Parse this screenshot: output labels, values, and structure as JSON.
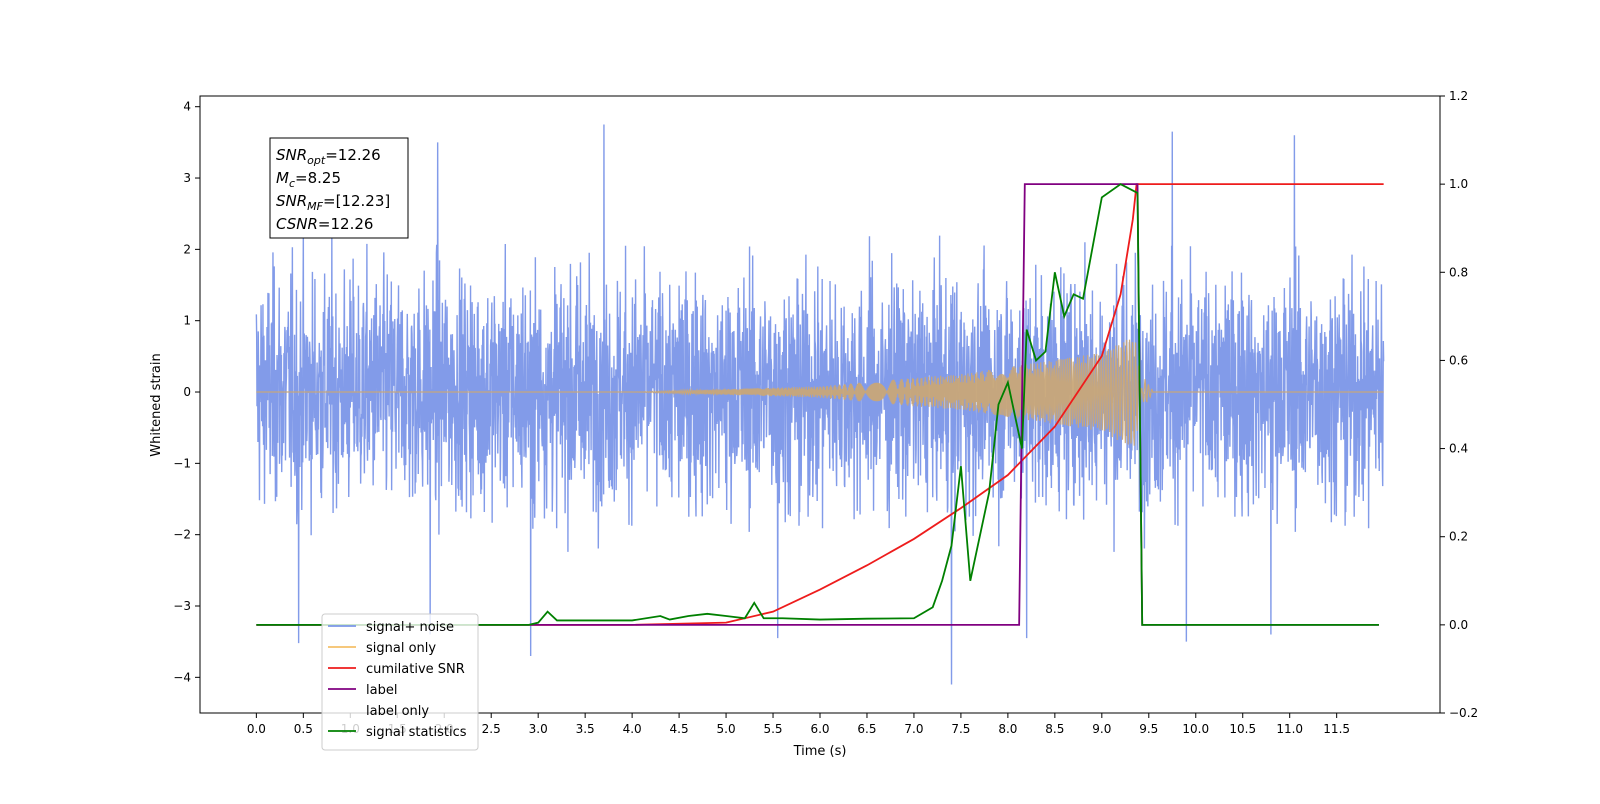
{
  "chart_data": {
    "type": "line",
    "xlabel": "Time (s)",
    "ylabel": "Whitened strain",
    "ylabel_right": "",
    "xlim": [
      -0.6,
      12.6
    ],
    "ylim_left": [
      -4.5,
      4.15
    ],
    "ylim_right": [
      -0.2,
      1.2
    ],
    "x_ticks": [
      "0.0",
      "0.5",
      "1.0",
      "1.5",
      "2.0",
      "2.5",
      "3.0",
      "3.5",
      "4.0",
      "4.5",
      "5.0",
      "5.5",
      "6.0",
      "6.5",
      "7.0",
      "7.5",
      "8.0",
      "8.5",
      "9.0",
      "9.5",
      "10.0",
      "10.5",
      "11.0",
      "11.5"
    ],
    "y_ticks_left": [
      "4",
      "3",
      "2",
      "1",
      "0",
      "−1",
      "−2",
      "−3",
      "−4"
    ],
    "y_ticks_right": [
      "1.2",
      "1.0",
      "0.8",
      "0.6",
      "0.4",
      "0.2",
      "0.0",
      "−0.2"
    ],
    "grid": false,
    "legend_position": "lower-left",
    "annotation": [
      {
        "base": "SNR",
        "sub": "opt",
        "rest": "=12.26"
      },
      {
        "base": "M",
        "sub": "c",
        "rest": "=8.25"
      },
      {
        "base": "SNR",
        "sub": "MF",
        "rest": "=[12.23]"
      },
      {
        "base": "CSNR",
        "sub": "",
        "rest": "=12.26"
      }
    ],
    "series": [
      {
        "name": "signal+ noise",
        "axis": "left",
        "color": "#7b96e8",
        "kind": "noise",
        "t_start": 0.0,
        "t_end": 12.0,
        "typical_range": [
          -2.3,
          2.7
        ],
        "extremes": [
          [
            0.45,
            -3.52
          ],
          [
            1.85,
            -3.4
          ],
          [
            1.93,
            3.5
          ],
          [
            2.92,
            -3.7
          ],
          [
            3.7,
            3.75
          ],
          [
            5.55,
            -3.45
          ],
          [
            7.4,
            -4.1
          ],
          [
            8.2,
            -3.45
          ],
          [
            9.75,
            3.65
          ],
          [
            9.9,
            -3.5
          ],
          [
            10.8,
            -3.4
          ],
          [
            11.05,
            3.6
          ]
        ]
      },
      {
        "name": "signal only",
        "axis": "left",
        "color": "#c8a678",
        "kind": "chirp",
        "points": [
          [
            0.0,
            0.0
          ],
          [
            4.0,
            0.0
          ],
          [
            5.0,
            0.04
          ],
          [
            6.0,
            0.08
          ],
          [
            7.0,
            0.2
          ],
          [
            7.5,
            0.25
          ],
          [
            8.0,
            0.35
          ],
          [
            8.5,
            0.45
          ],
          [
            9.0,
            0.55
          ],
          [
            9.2,
            0.7
          ],
          [
            9.35,
            0.8
          ],
          [
            9.45,
            -0.2
          ],
          [
            9.55,
            0.0
          ],
          [
            12.0,
            0.0
          ]
        ]
      },
      {
        "name": "cumilative SNR",
        "axis": "right",
        "color": "#ee1c1c",
        "kind": "line",
        "points": [
          [
            0.0,
            0.0
          ],
          [
            4.0,
            0.0
          ],
          [
            5.0,
            0.005
          ],
          [
            5.5,
            0.03
          ],
          [
            6.0,
            0.08
          ],
          [
            6.5,
            0.135
          ],
          [
            7.0,
            0.195
          ],
          [
            7.5,
            0.265
          ],
          [
            8.0,
            0.34
          ],
          [
            8.5,
            0.45
          ],
          [
            9.0,
            0.61
          ],
          [
            9.2,
            0.75
          ],
          [
            9.33,
            0.92
          ],
          [
            9.37,
            1.0
          ],
          [
            12.0,
            1.0
          ]
        ]
      },
      {
        "name": "label",
        "axis": "right",
        "color": "#800080",
        "kind": "line",
        "points": [
          [
            0.0,
            0.0
          ],
          [
            8.12,
            0.0
          ],
          [
            8.18,
            1.0
          ],
          [
            9.38,
            1.0
          ],
          [
            9.43,
            0.0
          ],
          [
            11.95,
            0.0
          ]
        ]
      },
      {
        "name": "label only",
        "axis": "right",
        "color": "#bbbbbb",
        "kind": "legend-only",
        "points": []
      },
      {
        "name": "signal statistics",
        "axis": "right",
        "color": "#008000",
        "kind": "line",
        "points": [
          [
            0.0,
            0.0
          ],
          [
            2.9,
            0.0
          ],
          [
            3.0,
            0.005
          ],
          [
            3.1,
            0.03
          ],
          [
            3.2,
            0.01
          ],
          [
            3.5,
            0.01
          ],
          [
            4.0,
            0.01
          ],
          [
            4.3,
            0.02
          ],
          [
            4.4,
            0.012
          ],
          [
            4.6,
            0.02
          ],
          [
            4.8,
            0.025
          ],
          [
            5.0,
            0.02
          ],
          [
            5.2,
            0.015
          ],
          [
            5.3,
            0.05
          ],
          [
            5.4,
            0.015
          ],
          [
            5.6,
            0.015
          ],
          [
            6.0,
            0.012
          ],
          [
            6.5,
            0.014
          ],
          [
            7.0,
            0.015
          ],
          [
            7.2,
            0.04
          ],
          [
            7.3,
            0.1
          ],
          [
            7.4,
            0.18
          ],
          [
            7.5,
            0.36
          ],
          [
            7.6,
            0.1
          ],
          [
            7.7,
            0.2
          ],
          [
            7.8,
            0.3
          ],
          [
            7.9,
            0.5
          ],
          [
            8.0,
            0.55
          ],
          [
            8.1,
            0.45
          ],
          [
            8.15,
            0.4
          ],
          [
            8.2,
            0.67
          ],
          [
            8.3,
            0.6
          ],
          [
            8.4,
            0.62
          ],
          [
            8.5,
            0.8
          ],
          [
            8.6,
            0.7
          ],
          [
            8.7,
            0.75
          ],
          [
            8.8,
            0.74
          ],
          [
            9.0,
            0.97
          ],
          [
            9.2,
            1.0
          ],
          [
            9.38,
            0.98
          ],
          [
            9.43,
            0.0
          ],
          [
            11.95,
            0.0
          ]
        ]
      }
    ]
  }
}
